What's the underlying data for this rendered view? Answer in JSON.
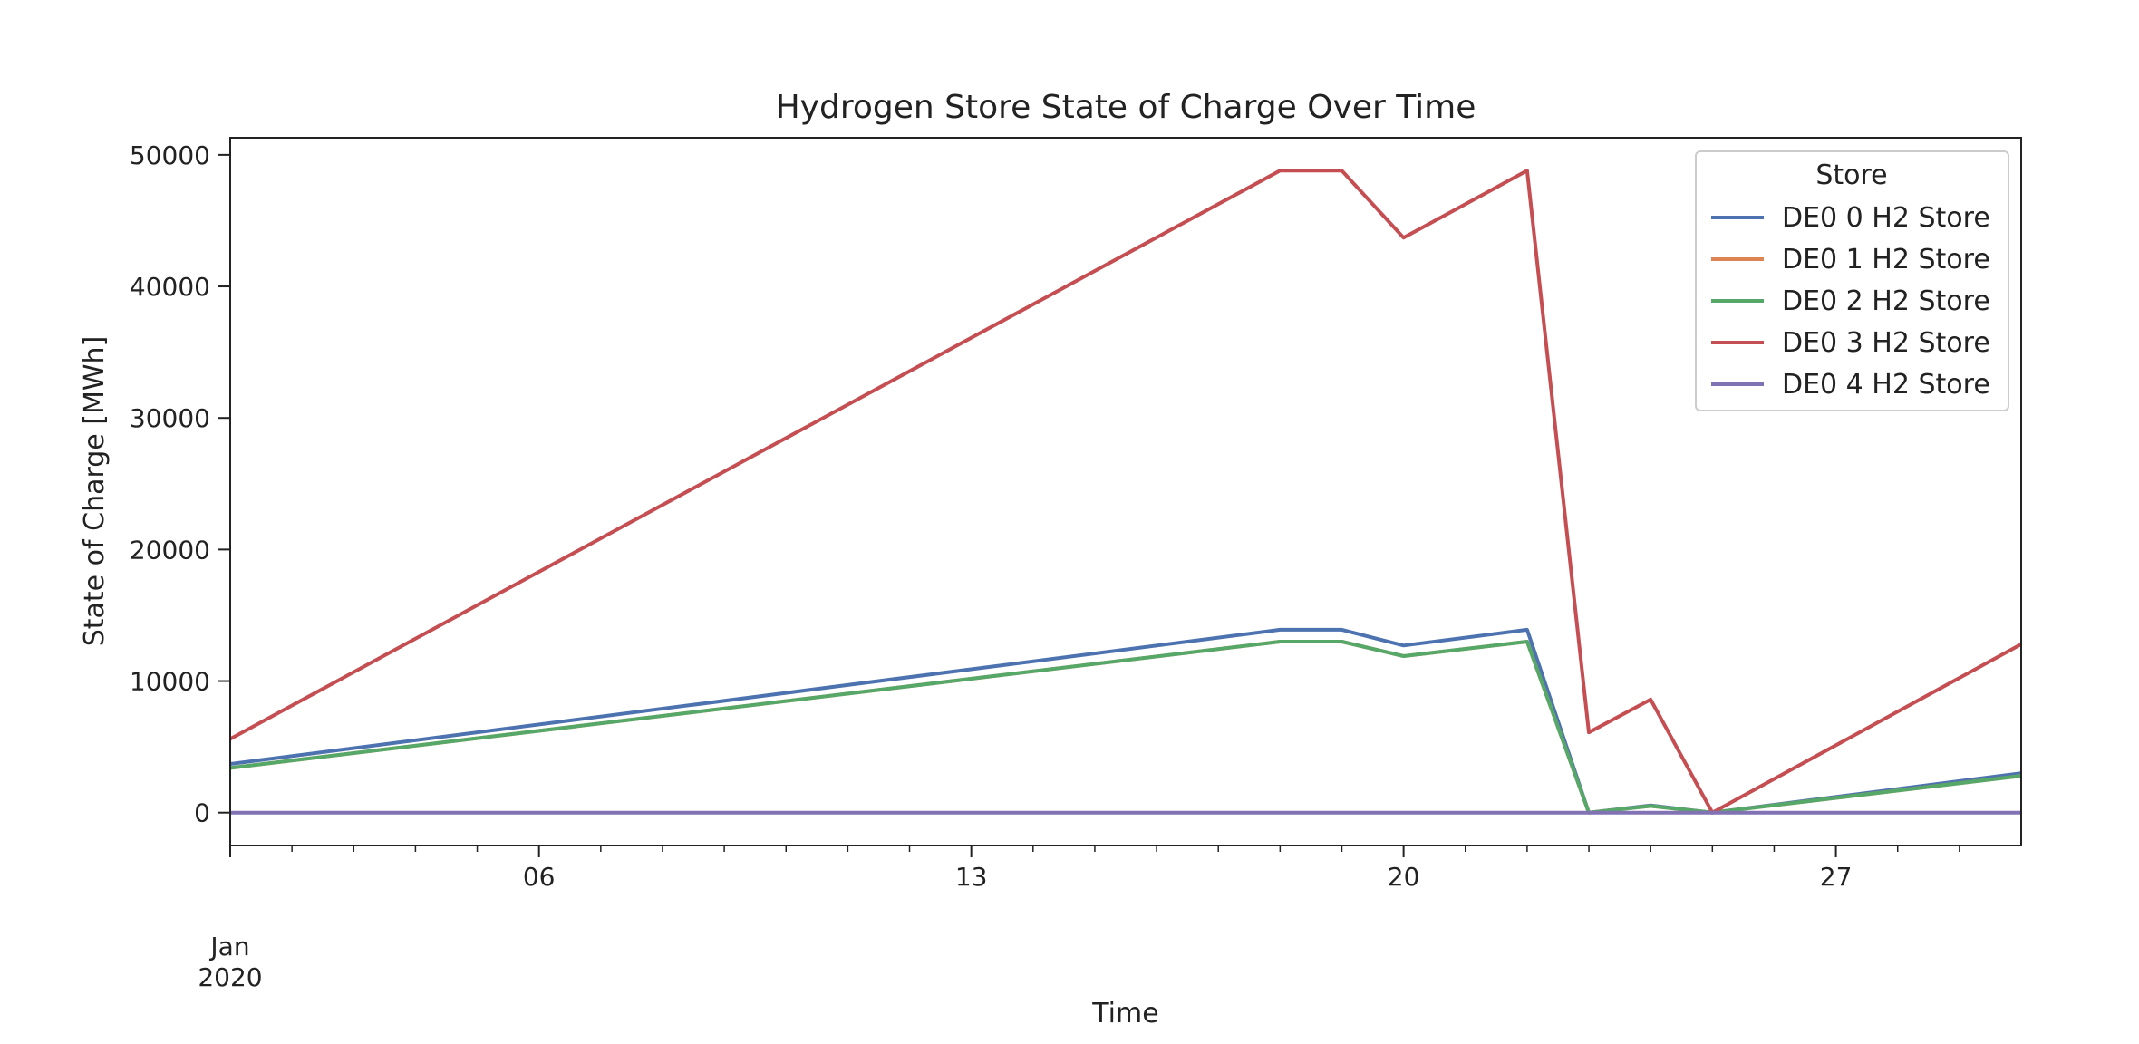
{
  "chart_data": {
    "type": "line",
    "title": "Hydrogen Store State of Charge Over Time",
    "xlabel": "Time",
    "ylabel": "State of Charge [MWh]",
    "xlim": [
      1,
      30
    ],
    "ylim": [
      -2500,
      51300
    ],
    "x_major_ticks": [
      {
        "value": 1,
        "label": "Jan",
        "sublabel": "2020"
      },
      {
        "value": 6,
        "label": "06"
      },
      {
        "value": 13,
        "label": "13"
      },
      {
        "value": 20,
        "label": "20"
      },
      {
        "value": 27,
        "label": "27"
      }
    ],
    "x_minor_ticks": [
      2,
      3,
      4,
      5,
      7,
      8,
      9,
      10,
      11,
      12,
      14,
      15,
      16,
      17,
      18,
      19,
      21,
      22,
      23,
      24,
      25,
      26,
      28,
      29
    ],
    "y_ticks": [
      {
        "value": 0,
        "label": "0"
      },
      {
        "value": 10000,
        "label": "10000"
      },
      {
        "value": 20000,
        "label": "20000"
      },
      {
        "value": 30000,
        "label": "30000"
      },
      {
        "value": 40000,
        "label": "40000"
      },
      {
        "value": 50000,
        "label": "50000"
      }
    ],
    "legend": {
      "title": "Store",
      "position": "upper right"
    },
    "x": [
      1,
      18,
      19,
      20,
      22,
      23,
      24,
      25,
      30
    ],
    "series": [
      {
        "name": "DE0 0 H2 Store",
        "color": "#4c72b0",
        "values": [
          3700,
          13900,
          13900,
          12700,
          13900,
          0,
          550,
          0,
          3000
        ]
      },
      {
        "name": "DE0 1 H2 Store",
        "color": "#dd8452",
        "values": [
          3400,
          13000,
          13000,
          11900,
          13000,
          0,
          500,
          0,
          2800
        ]
      },
      {
        "name": "DE0 2 H2 Store",
        "color": "#55a868",
        "values": [
          3400,
          13000,
          13000,
          11900,
          13000,
          0,
          500,
          0,
          2800
        ]
      },
      {
        "name": "DE0 3 H2 Store",
        "color": "#c44e52",
        "values": [
          5600,
          48800,
          48800,
          43700,
          48800,
          6100,
          8600,
          0,
          12800
        ]
      },
      {
        "name": "DE0 4 H2 Store",
        "color": "#8172b3",
        "values": [
          0,
          0,
          0,
          0,
          0,
          0,
          0,
          0,
          0
        ]
      }
    ]
  }
}
